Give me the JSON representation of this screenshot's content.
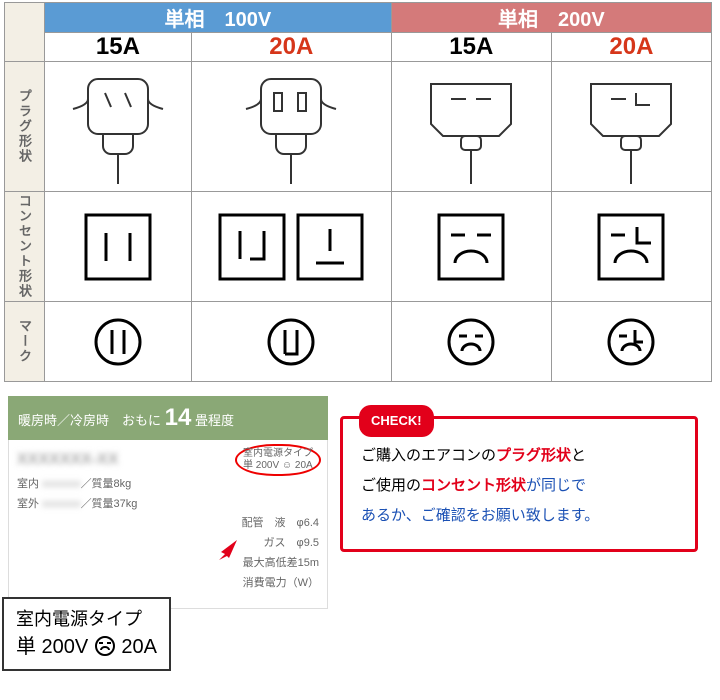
{
  "table": {
    "header_100v": "単相　100V",
    "header_200v": "単相　200V",
    "amps": [
      "15A",
      "20A",
      "15A",
      "20A"
    ],
    "amps_red": [
      false,
      true,
      false,
      true
    ],
    "row_labels": [
      "プラグ形状",
      "コンセント形状",
      "マーク"
    ],
    "colors": {
      "hdr_100v_bg": "#5a9bd4",
      "hdr_200v_bg": "#d47a7a",
      "row_lbl_bg": "#f3efe5",
      "amp_red": "#d6361a",
      "border": "#999999"
    },
    "widths": {
      "row_label": 40,
      "data_col": 166
    },
    "heights": {
      "plug": 130,
      "outlet": 110,
      "mark": 80
    }
  },
  "spec": {
    "header_pre": "暖房時／冷房時　おもに",
    "header_num": "14",
    "header_post": " 畳程度",
    "lines": [
      {
        "l": "室内",
        "r": "／質量8kg"
      },
      {
        "l": "室外",
        "r": "／質量37kg"
      }
    ],
    "circled_l1": "室内電源タイプ",
    "circled_l2": "単 200V ☺ 20A",
    "extra1": "配管　液　φ6.4",
    "extra2": "　　　ガス　φ9.5",
    "extra3": "最大高低差15m",
    "extra4": "消費電力（W）",
    "colors": {
      "hdr_bg": "#8aa876",
      "circled_border": "#e00000",
      "body_border": "#dddddd"
    }
  },
  "zoom": {
    "line1": "室内電源タイプ",
    "line2_a": "単 200V ",
    "line2_b": " 20A",
    "border_color": "#333333"
  },
  "check": {
    "tag": "CHECK!",
    "text_parts": [
      {
        "t": "ご購入のエアコンの",
        "cls": ""
      },
      {
        "t": "プラグ形状",
        "cls": "hl-red"
      },
      {
        "t": "と\nご使用の",
        "cls": ""
      },
      {
        "t": "コンセント形状",
        "cls": "hl-red"
      },
      {
        "t": "が同じで\nあるか、ご確認をお願い致します。",
        "cls": "hl-blue"
      }
    ],
    "colors": {
      "border": "#e2001a",
      "tag_bg": "#e2001a",
      "red": "#e2001a",
      "blue": "#1a50b4"
    }
  }
}
